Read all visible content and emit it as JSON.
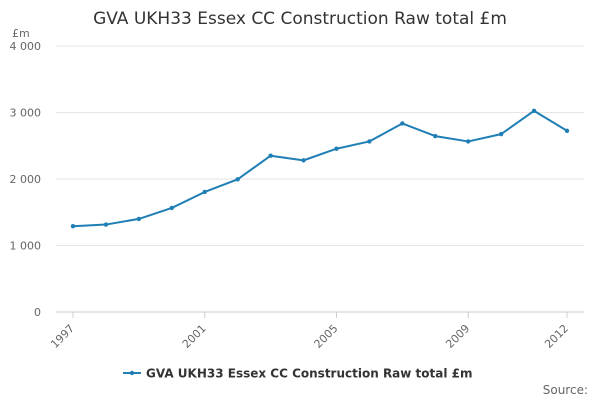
{
  "chart_data": {
    "type": "line",
    "title": "GVA UKH33 Essex CC Construction Raw total £m",
    "ylabel": "£m",
    "xlabel": "",
    "x": [
      1997,
      1998,
      1999,
      2000,
      2001,
      2002,
      2003,
      2004,
      2005,
      2006,
      2007,
      2008,
      2009,
      2010,
      2011,
      2012
    ],
    "series": [
      {
        "name": "GVA UKH33 Essex CC Construction Raw total £m",
        "values": [
          1290,
          1315,
          1400,
          1565,
          1805,
          1995,
          2350,
          2280,
          2455,
          2565,
          2835,
          2645,
          2565,
          2675,
          3025,
          2725
        ]
      }
    ],
    "ylim": [
      0,
      4000
    ],
    "y_ticks": [
      0,
      1000,
      2000,
      3000,
      4000
    ],
    "y_tick_labels": [
      "0",
      "1 000",
      "2 000",
      "3 000",
      "4 000"
    ],
    "x_ticks": [
      1997,
      2001,
      2005,
      2009,
      2012
    ],
    "x_tick_labels": [
      "1997",
      "2001",
      "2005",
      "2009",
      "2012"
    ],
    "grid": true,
    "legend_position": "bottom",
    "series_color": "#1f7fb5",
    "source_label": "Source:"
  }
}
